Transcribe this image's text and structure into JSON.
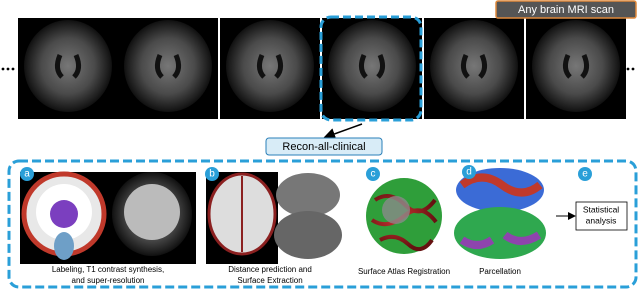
{
  "header": {
    "label": "Any brain MRI scan"
  },
  "center": {
    "label": "Recon-all-clinical"
  },
  "panels": [
    {
      "letter": "a",
      "caption": [
        "Labeling, T1 contrast synthesis,",
        "and super-resolution"
      ]
    },
    {
      "letter": "b",
      "caption": [
        "Distance prediction and",
        "Surface Extraction"
      ]
    },
    {
      "letter": "c",
      "caption": [
        "Surface Atlas Registration"
      ]
    },
    {
      "letter": "d",
      "caption": [
        "Parcellation"
      ]
    },
    {
      "letter": "e",
      "caption": []
    }
  ],
  "output": {
    "label": [
      "Statistical",
      "analysis"
    ]
  }
}
